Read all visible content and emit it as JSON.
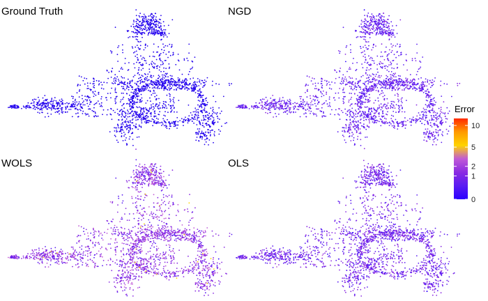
{
  "chart_data": {
    "type": "scatter",
    "panels": [
      {
        "title": "Ground Truth",
        "error_level": 0
      },
      {
        "title": "NGD",
        "error_level": 0.55
      },
      {
        "title": "WOLS",
        "error_level": 1.4
      },
      {
        "title": "OLS",
        "error_level": 0.75
      }
    ],
    "legend": {
      "title": "Error",
      "ticks": [
        0,
        1,
        2,
        5,
        10
      ],
      "colors": [
        "#2a00ff",
        "#5a1cf2",
        "#8a2be2",
        "#c05ad6",
        "#ffd400",
        "#ff9a00",
        "#ff2a00"
      ],
      "range": [
        0,
        12
      ]
    },
    "point_color_ground_truth": "#2200ee",
    "grid": false
  }
}
